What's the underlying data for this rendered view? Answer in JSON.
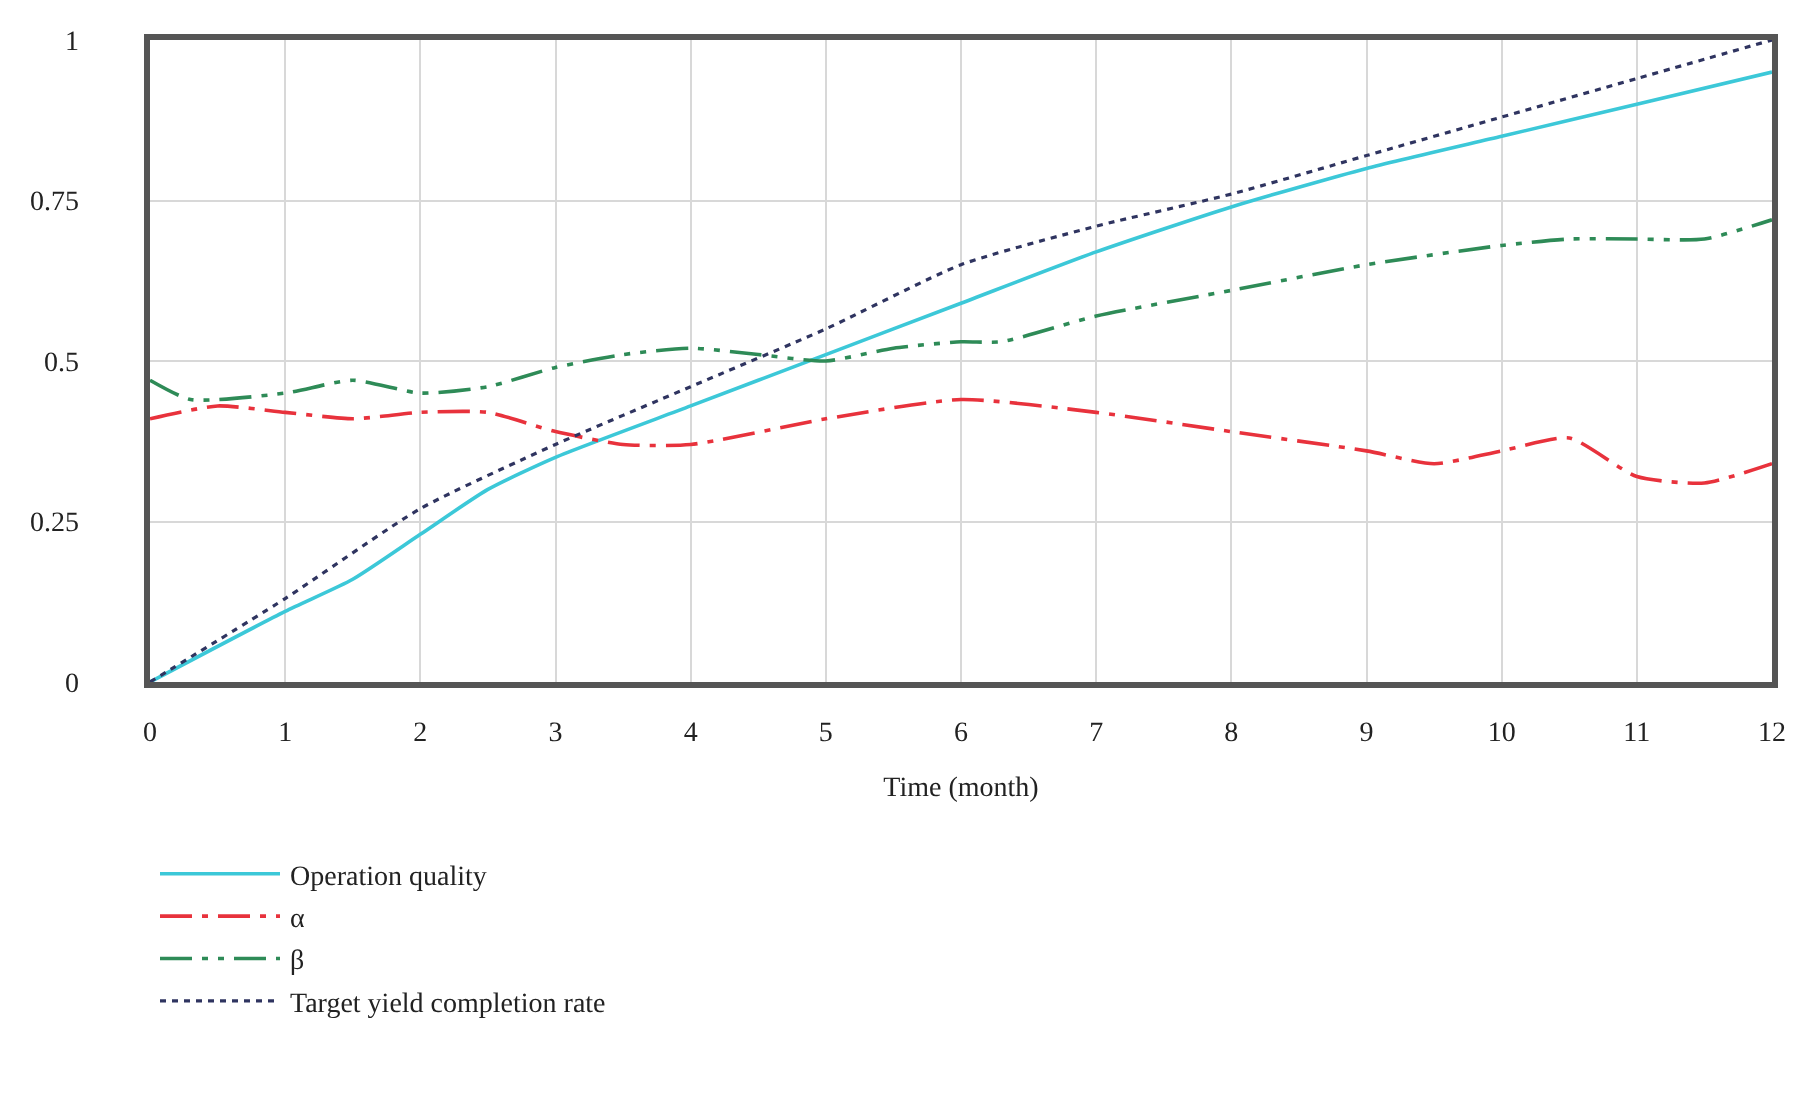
{
  "chart_data": {
    "type": "line",
    "xlabel": "Time (month)",
    "xlim": [
      0,
      12
    ],
    "xticks": [
      0,
      1,
      2,
      3,
      4,
      5,
      6,
      7,
      8,
      9,
      10,
      11,
      12
    ],
    "ylim": [
      0,
      1
    ],
    "yticks": [
      0,
      0.25,
      0.5,
      0.75,
      1
    ],
    "grid": true,
    "legend": "bottom",
    "marker": "none",
    "series": [
      {
        "name": "Operation quality",
        "color": "#3cc8d8",
        "line_style": "solid",
        "x": [
          0,
          1,
          1.5,
          2,
          2.5,
          3,
          4,
          5,
          6,
          7,
          8,
          9,
          10,
          11,
          12
        ],
        "values": [
          0,
          0.11,
          0.16,
          0.23,
          0.3,
          0.35,
          0.43,
          0.51,
          0.59,
          0.67,
          0.74,
          0.8,
          0.85,
          0.9,
          0.95
        ]
      },
      {
        "name": "α",
        "color": "#e8323c",
        "line_style": "dashdot",
        "x": [
          0,
          0.5,
          1,
          1.5,
          2,
          2.5,
          3,
          3.5,
          4,
          5,
          6,
          7,
          8,
          9,
          9.5,
          10,
          10.5,
          11,
          11.5,
          12
        ],
        "values": [
          0.41,
          0.43,
          0.42,
          0.41,
          0.42,
          0.42,
          0.39,
          0.37,
          0.37,
          0.41,
          0.44,
          0.42,
          0.39,
          0.36,
          0.34,
          0.36,
          0.38,
          0.32,
          0.31,
          0.34
        ]
      },
      {
        "name": "β",
        "color": "#2e8b57",
        "line_style": "dashdotdot",
        "x": [
          0,
          0.3,
          1,
          1.5,
          2,
          2.5,
          3,
          3.5,
          4,
          4.5,
          5,
          5.5,
          6,
          6.3,
          7,
          8,
          9,
          10,
          10.5,
          11,
          11.5,
          12
        ],
        "values": [
          0.47,
          0.44,
          0.45,
          0.47,
          0.45,
          0.46,
          0.49,
          0.51,
          0.52,
          0.51,
          0.5,
          0.52,
          0.53,
          0.53,
          0.57,
          0.61,
          0.65,
          0.68,
          0.69,
          0.69,
          0.69,
          0.72
        ]
      },
      {
        "name": "Target yield completion rate",
        "color": "#2f3460",
        "line_style": "dotted",
        "x": [
          0,
          1,
          2,
          3,
          4,
          5,
          6,
          7,
          8,
          9,
          10,
          11,
          12
        ],
        "values": [
          0,
          0.13,
          0.27,
          0.37,
          0.46,
          0.55,
          0.65,
          0.71,
          0.76,
          0.82,
          0.88,
          0.94,
          1.0
        ]
      }
    ]
  }
}
